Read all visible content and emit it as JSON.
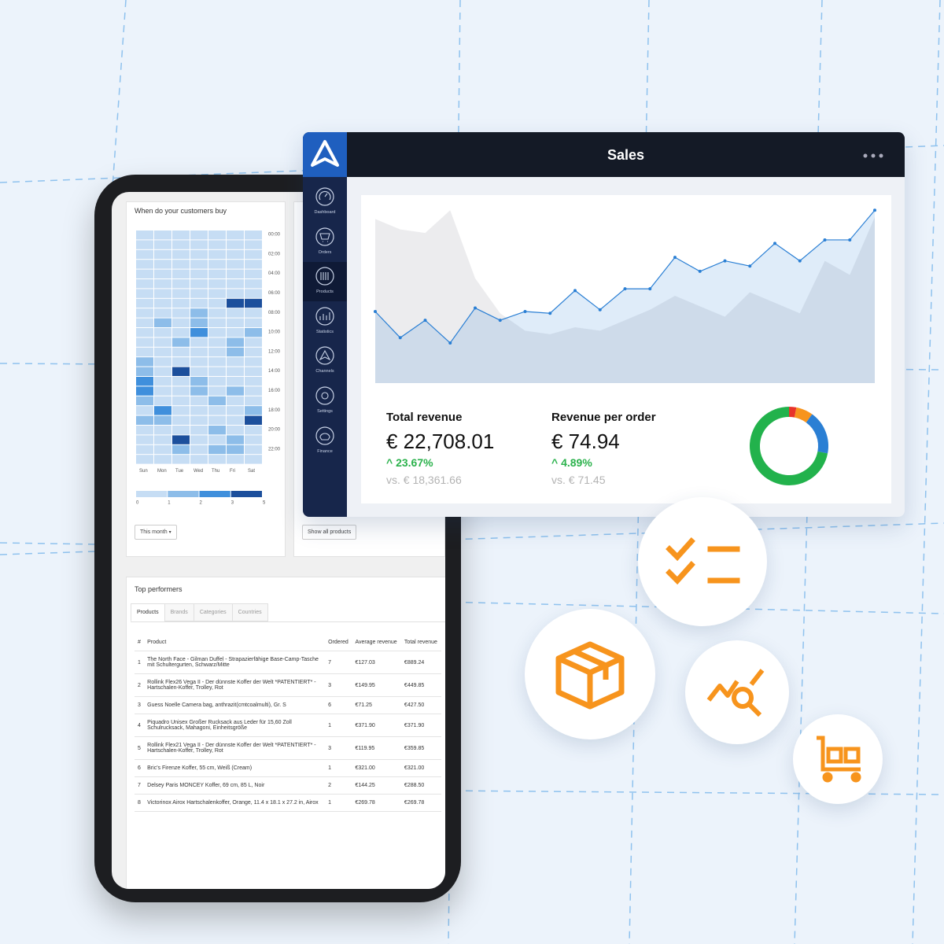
{
  "sales_panel": {
    "title": "Sales",
    "nav": [
      "Dashboard",
      "Orders",
      "Products",
      "Statistics",
      "Channels",
      "Settings",
      "Finance"
    ],
    "chart": {
      "type": "area",
      "ylim": [
        0,
        100
      ],
      "previous": {
        "color": "#dcdde0",
        "values": [
          94,
          88,
          86,
          99,
          60,
          40,
          30,
          28,
          32,
          30,
          36,
          42,
          50,
          44,
          38,
          52,
          46,
          40,
          70,
          62,
          95
        ]
      },
      "current": {
        "color": "#2a7fd4",
        "values": [
          41,
          26,
          36,
          23,
          43,
          36,
          41,
          40,
          53,
          42,
          54,
          54,
          72,
          64,
          70,
          67,
          80,
          70,
          82,
          82,
          99
        ]
      }
    },
    "metrics": [
      {
        "label": "Total revenue",
        "value": "€ 22,708.01",
        "change": "^ 23.67%",
        "comparison": "vs. € 18,361.66"
      },
      {
        "label": "Revenue per order",
        "value": "€ 74.94",
        "change": "^ 4.89%",
        "comparison": "vs. € 71.45"
      }
    ],
    "donut": {
      "type": "pie",
      "values": [
        3,
        7,
        18,
        72
      ],
      "colors": [
        "#e8332a",
        "#f7941d",
        "#2a7fd4",
        "#22b24c"
      ]
    }
  },
  "tablet": {
    "heatmap": {
      "title": "When do your customers buy",
      "hours": [
        "00:00",
        "02:00",
        "04:00",
        "06:00",
        "08:00",
        "10:00",
        "12:00",
        "14:00",
        "16:00",
        "18:00",
        "20:00",
        "22:00"
      ],
      "days": [
        "Sun",
        "Mon",
        "Tue",
        "Wed",
        "Thu",
        "Fri",
        "Sat"
      ],
      "values": [
        [
          0,
          0,
          0,
          0,
          0,
          0,
          0
        ],
        [
          0,
          0,
          0,
          0,
          0,
          0,
          0
        ],
        [
          0,
          0,
          0,
          0,
          0,
          0,
          0
        ],
        [
          0,
          0,
          0,
          0,
          0,
          0,
          0
        ],
        [
          0,
          0,
          0,
          0,
          0,
          0,
          0
        ],
        [
          0,
          0,
          0,
          0,
          0,
          0,
          0
        ],
        [
          0,
          0,
          0,
          0,
          0,
          0,
          0
        ],
        [
          0,
          0,
          0,
          0,
          0,
          4,
          3
        ],
        [
          0,
          0,
          0,
          1,
          0,
          0,
          0
        ],
        [
          0,
          1,
          0,
          1,
          0,
          0,
          0
        ],
        [
          0,
          0,
          0,
          2,
          0,
          0,
          1
        ],
        [
          0,
          0,
          1,
          0,
          0,
          1,
          0
        ],
        [
          0,
          0,
          0,
          0,
          0,
          1,
          0
        ],
        [
          1,
          0,
          0,
          0,
          0,
          0,
          0
        ],
        [
          1,
          0,
          4,
          0,
          0,
          0,
          0
        ],
        [
          2,
          0,
          0,
          1,
          0,
          0,
          0
        ],
        [
          2,
          0,
          0,
          1,
          0,
          1,
          0
        ],
        [
          1,
          0,
          0,
          0,
          1,
          0,
          0
        ],
        [
          0,
          2,
          0,
          0,
          0,
          0,
          1
        ],
        [
          1,
          1,
          0,
          0,
          0,
          0,
          3
        ],
        [
          0,
          0,
          0,
          0,
          1,
          0,
          0
        ],
        [
          0,
          0,
          4,
          0,
          0,
          1,
          0
        ],
        [
          0,
          0,
          1,
          0,
          1,
          1,
          0
        ],
        [
          0,
          0,
          0,
          0,
          0,
          0,
          0
        ]
      ],
      "legend_labels": [
        0,
        1,
        2,
        3,
        5
      ],
      "colors": [
        "#c6ddf4",
        "#8dbde9",
        "#3f8fdc",
        "#1c4f9c"
      ]
    },
    "buttons": [
      "This month",
      "Show all products"
    ],
    "top_performers": {
      "title": "Top performers",
      "tabs": [
        "Products",
        "Brands",
        "Categories",
        "Countries"
      ],
      "columns": [
        "#",
        "Product",
        "Ordered",
        "Average revenue",
        "Total revenue"
      ],
      "rows": [
        [
          1,
          "The North Face - Gilman Duffel - Strapazierfähige Base-Camp-Tasche mit Schultergurten, Schwarz/Mitte",
          7,
          "€127.03",
          "€889.24"
        ],
        [
          2,
          "Rollink Flex26 Vega II - Der dünnste Koffer der Welt *PATENTIERT* - Hartschalen-Koffer, Trolley, Rot",
          3,
          "€149.95",
          "€449.85"
        ],
        [
          3,
          "Guess Noelle Camera bag, anthrazit(cmtcoalmulti), Gr. S",
          6,
          "€71.25",
          "€427.50"
        ],
        [
          4,
          "Piquadro Unisex Großer Rucksack aus Leder für 15,60 Zoll Schulrucksack, Mahagoni, Einheitsgröße",
          1,
          "€371.90",
          "€371.90"
        ],
        [
          5,
          "Rollink Flex21 Vega II - Der dünnste Koffer der Welt *PATENTIERT* - Hartschalen-Koffer, Trolley, Rot",
          3,
          "€119.95",
          "€359.85"
        ],
        [
          6,
          "Bric's Firenze Koffer, 55 cm, Weiß (Cream)",
          1,
          "€321.00",
          "€321.00"
        ],
        [
          7,
          "Delsey Paris MONCEY Koffer, 69 cm, 85 L, Noir",
          2,
          "€144.25",
          "€288.50"
        ],
        [
          8,
          "Victorinox Airox Hartschalenkoffer, Orange, 11.4 x 18.1 x 27.2 in, Airox",
          1,
          "€269.78",
          "€269.78"
        ]
      ]
    }
  }
}
